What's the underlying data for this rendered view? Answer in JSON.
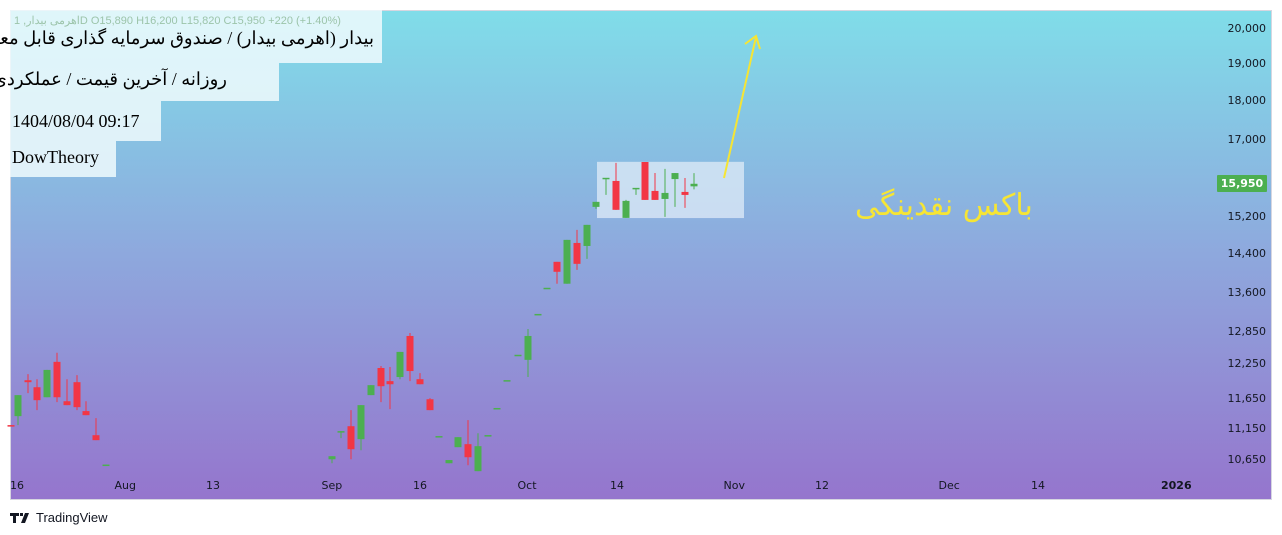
{
  "header": {
    "legend": "اهرمی بیدار, 1D  O15,890  H16,200  L15,820  C15,950  +220 (+1.40%)",
    "symbol_title": "بیدار (اهرمی بیدار) / صندوق سرمایه گذاری قابل معامله",
    "subtitle": "روزانه / آخرین قیمت / عملکردی",
    "datetime": "1404/08/04 09:17",
    "author": "DowTheory"
  },
  "price_axis": {
    "ticks": [
      "20,000",
      "19,000",
      "18,000",
      "17,000",
      "15,200",
      "14,400",
      "13,600",
      "12,850",
      "12,250",
      "11,650",
      "11,150",
      "10,650"
    ],
    "last_price": "15,950",
    "scale": "log"
  },
  "time_axis": {
    "ticks": [
      "16",
      "Aug",
      "13",
      "Sep",
      "16",
      "Oct",
      "14",
      "Nov",
      "12",
      "Dec",
      "14",
      "2026"
    ]
  },
  "annotation": {
    "label": "باکس نقدینگی",
    "color": "#f6e534",
    "box_price_range": [
      15170,
      16470
    ]
  },
  "colors": {
    "up": "#4caf50",
    "down": "#f23645",
    "annotation": "#f6e534"
  },
  "brand": "TradingView",
  "chart_data": {
    "type": "candlestick",
    "ylim": [
      10400,
      20400
    ],
    "scale": "log",
    "candles": [
      [
        11208,
        11208,
        11190,
        11190
      ],
      [
        11356,
        11710,
        11208,
        11710
      ],
      [
        11968,
        12076,
        11744,
        11934
      ],
      [
        11846,
        11986,
        11456,
        11624
      ],
      [
        11674,
        12150,
        11674,
        12150
      ],
      [
        12294,
        12458,
        11590,
        11674
      ],
      [
        11606,
        11986,
        11540,
        11540
      ],
      [
        11934,
        12058,
        11456,
        11506
      ],
      [
        11440,
        11606,
        11372,
        11372
      ],
      [
        11044,
        11322,
        10964,
        10964
      ],
      [
        10570,
        10580,
        10570,
        10580
      ],
      [
        10662,
        10710,
        10600,
        10710
      ],
      [
        11110,
        11110,
        10996,
        11110
      ],
      [
        11190,
        11456,
        10662,
        10820
      ],
      [
        10980,
        11540,
        10804,
        11540
      ],
      [
        11710,
        11882,
        11710,
        11882
      ],
      [
        12184,
        12220,
        11590,
        11864
      ],
      [
        11952,
        12202,
        11472,
        11898
      ],
      [
        12024,
        12474,
        11986,
        12474
      ],
      [
        12768,
        12824,
        11952,
        12130
      ],
      [
        11986,
        12094,
        11898,
        11898
      ],
      [
        11640,
        11658,
        11456,
        11456
      ],
      [
        11028,
        11028,
        11028,
        11030
      ],
      [
        10600,
        10650,
        10600,
        10650
      ],
      [
        10852,
        11012,
        10852,
        11012
      ],
      [
        10900,
        11290,
        10570,
        10694
      ],
      [
        10478,
        11076,
        10478,
        10868
      ],
      [
        11044,
        11044,
        11044,
        11046
      ],
      [
        11490,
        11490,
        11490,
        11492
      ],
      [
        11968,
        11968,
        11968,
        11970
      ],
      [
        12420,
        12420,
        12420,
        12422
      ],
      [
        12330,
        12898,
        12024,
        12768
      ],
      [
        13184,
        13184,
        13184,
        13186
      ],
      [
        13698,
        13698,
        13698,
        13700
      ],
      [
        14230,
        14230,
        13782,
        14024
      ],
      [
        13782,
        14694,
        13782,
        14694
      ],
      [
        14628,
        14910,
        14064,
        14188
      ],
      [
        14564,
        15020,
        14292,
        15020
      ],
      [
        15420,
        15534,
        15376,
        15534
      ],
      [
        16086,
        16086,
        15692,
        16090
      ],
      [
        16016,
        16444,
        15354,
        15354
      ],
      [
        15174,
        15578,
        15174,
        15556
      ],
      [
        15852,
        15852,
        15692,
        15855
      ],
      [
        16466,
        16466,
        15578,
        15578
      ],
      [
        15784,
        16202,
        15578,
        15578
      ],
      [
        15600,
        16300,
        15196,
        15738
      ],
      [
        16060,
        16202,
        15420,
        16202
      ],
      [
        15761,
        16086,
        15398,
        15692
      ],
      [
        15890,
        16200,
        15820,
        15950
      ]
    ]
  }
}
